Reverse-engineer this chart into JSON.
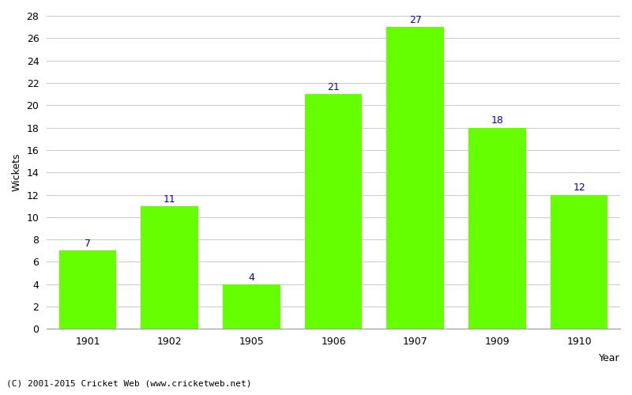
{
  "categories": [
    "1901",
    "1902",
    "1905",
    "1906",
    "1907",
    "1909",
    "1910"
  ],
  "values": [
    7,
    11,
    4,
    21,
    27,
    18,
    12
  ],
  "bar_color": "#66ff00",
  "label_color": "#0000cc",
  "xlabel": "Year",
  "ylabel": "Wickets",
  "ylim": [
    0,
    28
  ],
  "yticks": [
    0,
    2,
    4,
    6,
    8,
    10,
    12,
    14,
    16,
    18,
    20,
    22,
    24,
    26,
    28
  ],
  "grid_color": "#cccccc",
  "background_color": "#ffffff",
  "label_fontsize": 9,
  "axis_fontsize": 9,
  "tick_fontsize": 9,
  "footer": "(C) 2001-2015 Cricket Web (www.cricketweb.net)"
}
